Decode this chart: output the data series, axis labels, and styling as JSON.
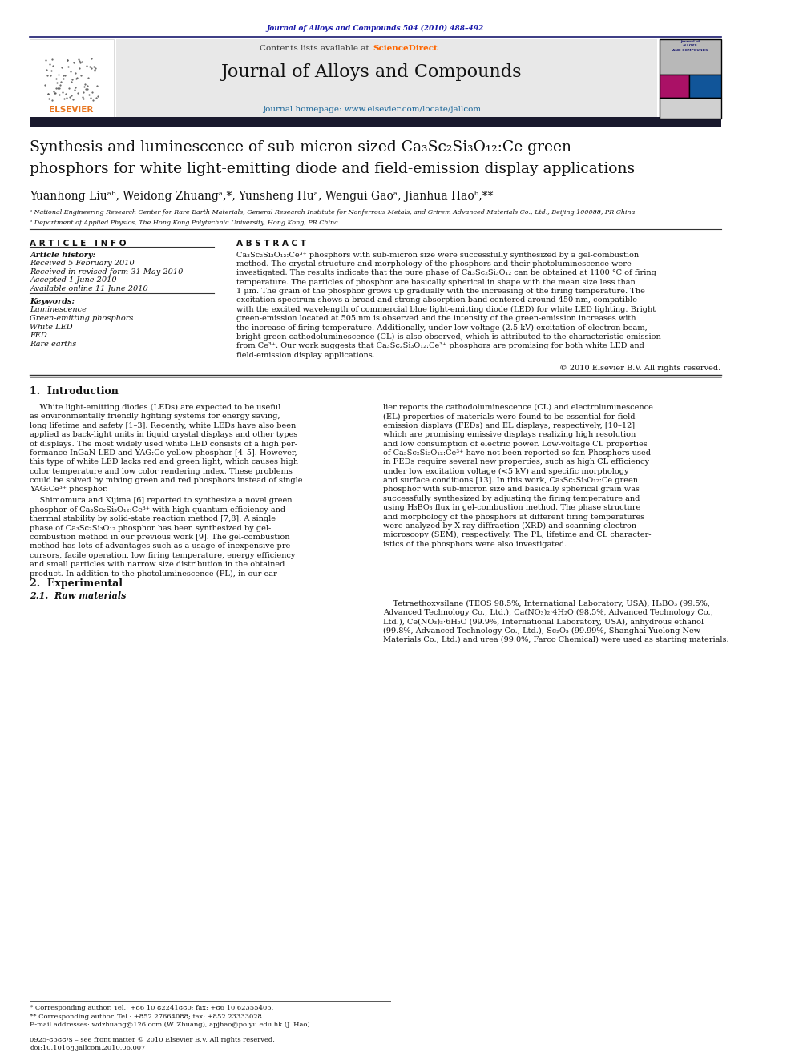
{
  "page_width": 9.92,
  "page_height": 13.23,
  "background_color": "#ffffff",
  "top_citation": "Journal of Alloys and Compounds 504 (2010) 488–492",
  "top_citation_color": "#1a1aaa",
  "contents_text": "Contents lists available at ",
  "science_direct": "ScienceDirect",
  "science_direct_color": "#ff6600",
  "journal_name": "Journal of Alloys and Compounds",
  "journal_homepage": "journal homepage: www.elsevier.com/locate/jallcom",
  "journal_homepage_color": "#1a6699",
  "header_bg": "#e8e8e8",
  "black_bar_color": "#1a1a2e",
  "article_info_header": "A R T I C L E   I N F O",
  "abstract_header": "A B S T R A C T",
  "article_history_label": "Article history:",
  "received": "Received 5 February 2010",
  "received_revised": "Received in revised form 31 May 2010",
  "accepted": "Accepted 1 June 2010",
  "available": "Available online 11 June 2010",
  "keywords_label": "Keywords:",
  "keyword1": "Luminescence",
  "keyword2": "Green-emitting phosphors",
  "keyword3": "White LED",
  "keyword4": "FED",
  "keyword5": "Rare earths",
  "copyright": "© 2010 Elsevier B.V. All rights reserved.",
  "section1_title": "1.  Introduction",
  "section2_title": "2.  Experimental",
  "section21_title": "2.1.  Raw materials",
  "footnote_star": "* Corresponding author. Tel.: +86 10 82241880; fax: +86 10 62355405.",
  "footnote_starstar": "** Corresponding author. Tel.: +852 27664088; fax: +852 23333028.",
  "footnote_email": "E-mail addresses: wdzhuang@126.com (W. Zhuang), apjhao@polyu.edu.hk (J. Hao).",
  "footer_issn": "0925-8388/$ – see front matter © 2010 Elsevier B.V. All rights reserved.",
  "footer_doi": "doi:10.1016/j.jallcom.2010.06.007"
}
